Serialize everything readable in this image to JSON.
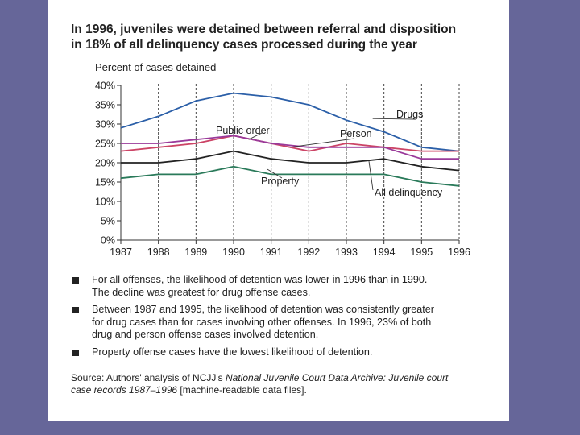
{
  "title": {
    "line1": "In 1996, juveniles were detained between referral and disposition",
    "line2": "in 18% of all delinquency cases processed during the year"
  },
  "chart_data": {
    "type": "line",
    "ylabel": "Percent of cases detained",
    "xlabel": "",
    "categories": [
      "1987",
      "1988",
      "1989",
      "1990",
      "1991",
      "1992",
      "1993",
      "1994",
      "1995",
      "1996"
    ],
    "ylim": [
      0,
      40
    ],
    "yticks": [
      "0%",
      "5%",
      "10%",
      "15%",
      "20%",
      "25%",
      "30%",
      "35%",
      "40%"
    ],
    "series": [
      {
        "name": "Drugs",
        "color": "#2b5fa8",
        "values": [
          29,
          32,
          36,
          38,
          37,
          35,
          31,
          28,
          24,
          23
        ]
      },
      {
        "name": "Person",
        "color": "#cc4466",
        "values": [
          23,
          24,
          25,
          27,
          25,
          23,
          25,
          24,
          23,
          23
        ]
      },
      {
        "name": "Public order",
        "color": "#9a3a9a",
        "values": [
          25,
          25,
          26,
          27,
          25,
          24,
          24,
          24,
          21,
          21
        ]
      },
      {
        "name": "All delinquency",
        "color": "#222222",
        "values": [
          20,
          20,
          21,
          23,
          21,
          20,
          20,
          21,
          19,
          18
        ]
      },
      {
        "name": "Property",
        "color": "#2a7a5a",
        "values": [
          16,
          17,
          17,
          19,
          17,
          17,
          17,
          17,
          15,
          14
        ]
      }
    ]
  },
  "bullets": [
    {
      "line1": "For all offenses, the likelihood of detention was lower in 1996 than in 1990.",
      "line2": "The decline was greatest for drug offense cases.",
      "line3": ""
    },
    {
      "line1": "Between 1987 and 1995, the likelihood of detention was consistently greater",
      "line2": "for drug cases than for cases involving other offenses. In 1996, 23% of both",
      "line3": "drug and person offense cases involved detention."
    },
    {
      "line1": "Property offense cases have the lowest likelihood of detention.",
      "line2": "",
      "line3": ""
    }
  ],
  "source": {
    "prefix": "Source: Authors' analysis of NCJJ's ",
    "italic1": "National Juvenile Court Data Archive: Juvenile court",
    "italic2": "case records 1987–1996",
    "suffix": " [machine-readable data files]."
  }
}
